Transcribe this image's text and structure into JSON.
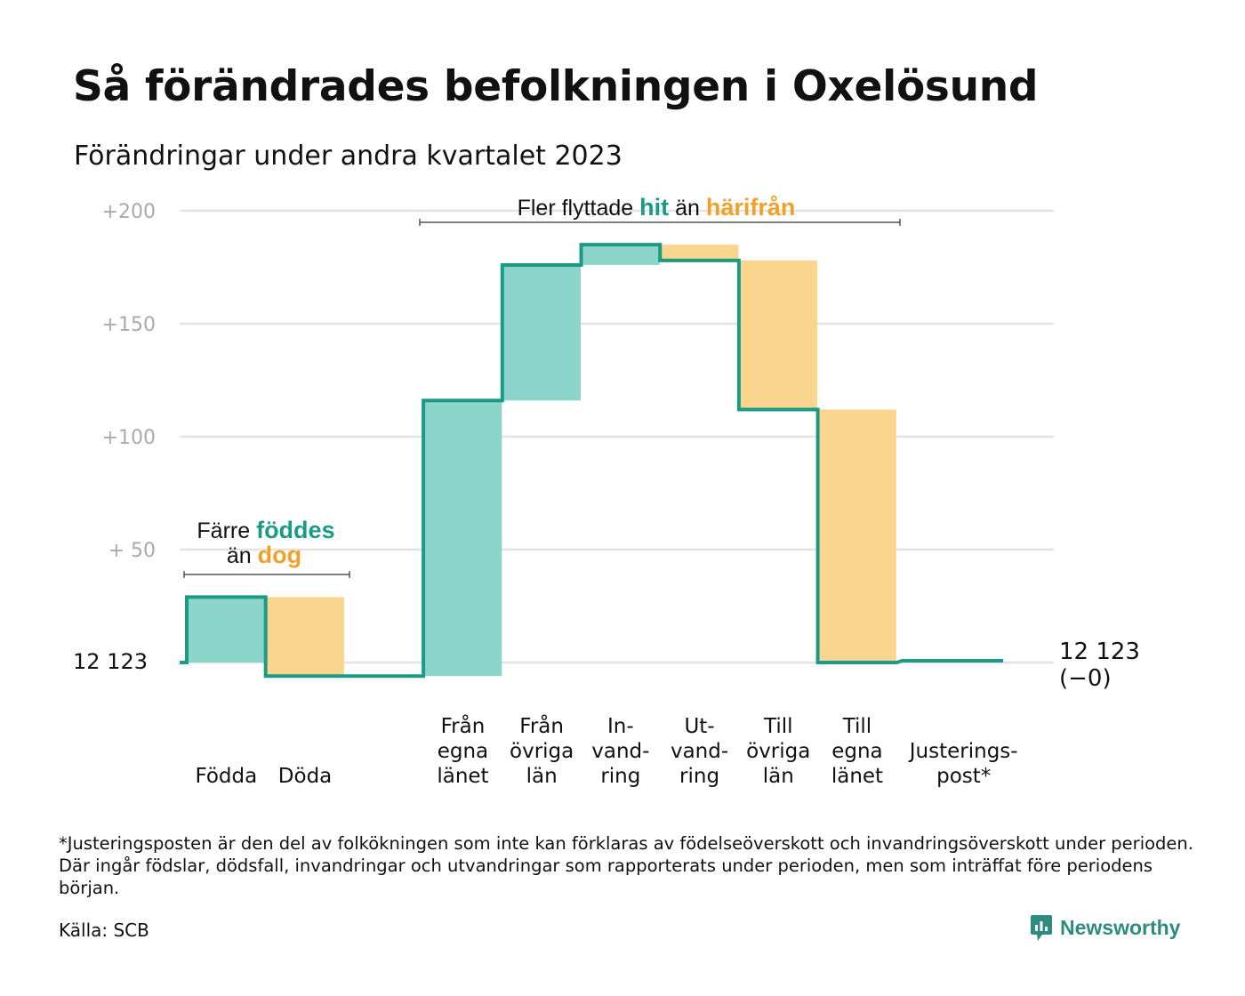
{
  "title": "Så förändrades befolkningen i Oxelösund",
  "subtitle": "Förändringar under andra kvartalet 2023",
  "colors": {
    "hit": "#1b9a86",
    "hit_fill": "#8cd5cb",
    "harifran": "#f0a12a",
    "harifran_fill": "#fad58e",
    "grid": "#e3e3e3",
    "tick": "#aaaaaa"
  },
  "annotations": {
    "natural": {
      "line1": "Färre",
      "line1_bold": "föddes",
      "line2": "än",
      "line2_bold": "dog"
    },
    "migration": {
      "text": "Fler flyttade",
      "bold1": "hit",
      "middle": "än",
      "bold2": "härifrån"
    }
  },
  "end_label": {
    "line1": "12 123",
    "line2": "(−0)"
  },
  "footnote": "*Justeringsposten är den del av folkökningen som inte kan förklaras av födelseöverskott och invandringsöverskott under perioden. Där ingår födslar, dödsfall, invandringar och utvandringar som rapporterats under perioden, men som inträffat före periodens början.",
  "source": "Källa: SCB",
  "brand": "Newsworthy",
  "chart_data": {
    "type": "waterfall",
    "start_value": 12123,
    "start_label": "12  123",
    "ylim": [
      -10,
      205
    ],
    "yticks": [
      {
        "value": 50,
        "label": "+  50"
      },
      {
        "value": 100,
        "label": "+100"
      },
      {
        "value": 150,
        "label": "+150"
      },
      {
        "value": 200,
        "label": "+200"
      }
    ],
    "steps": [
      {
        "label": [
          "Födda"
        ],
        "change": 29,
        "kind": "in"
      },
      {
        "label": [
          "Döda"
        ],
        "change": -35,
        "kind": "out"
      },
      {
        "label": [
          ""
        ],
        "change": 0,
        "kind": "gap"
      },
      {
        "label": [
          "Från",
          "egna",
          "länet"
        ],
        "change": 122,
        "kind": "in"
      },
      {
        "label": [
          "Från",
          "övriga",
          "län"
        ],
        "change": 60,
        "kind": "in"
      },
      {
        "label": [
          "In-",
          "vand-",
          "ring"
        ],
        "change": 9,
        "kind": "in"
      },
      {
        "label": [
          "Ut-",
          "vand-",
          "ring"
        ],
        "change": -7,
        "kind": "out"
      },
      {
        "label": [
          "Till",
          "övriga",
          "län"
        ],
        "change": -66,
        "kind": "out"
      },
      {
        "label": [
          "Till",
          "egna",
          "länet"
        ],
        "change": -112,
        "kind": "out"
      },
      {
        "label": [
          "Justerings-",
          "post*"
        ],
        "change": 0,
        "kind": "adjust"
      }
    ],
    "end_value": 12123,
    "end_change": "−0"
  }
}
